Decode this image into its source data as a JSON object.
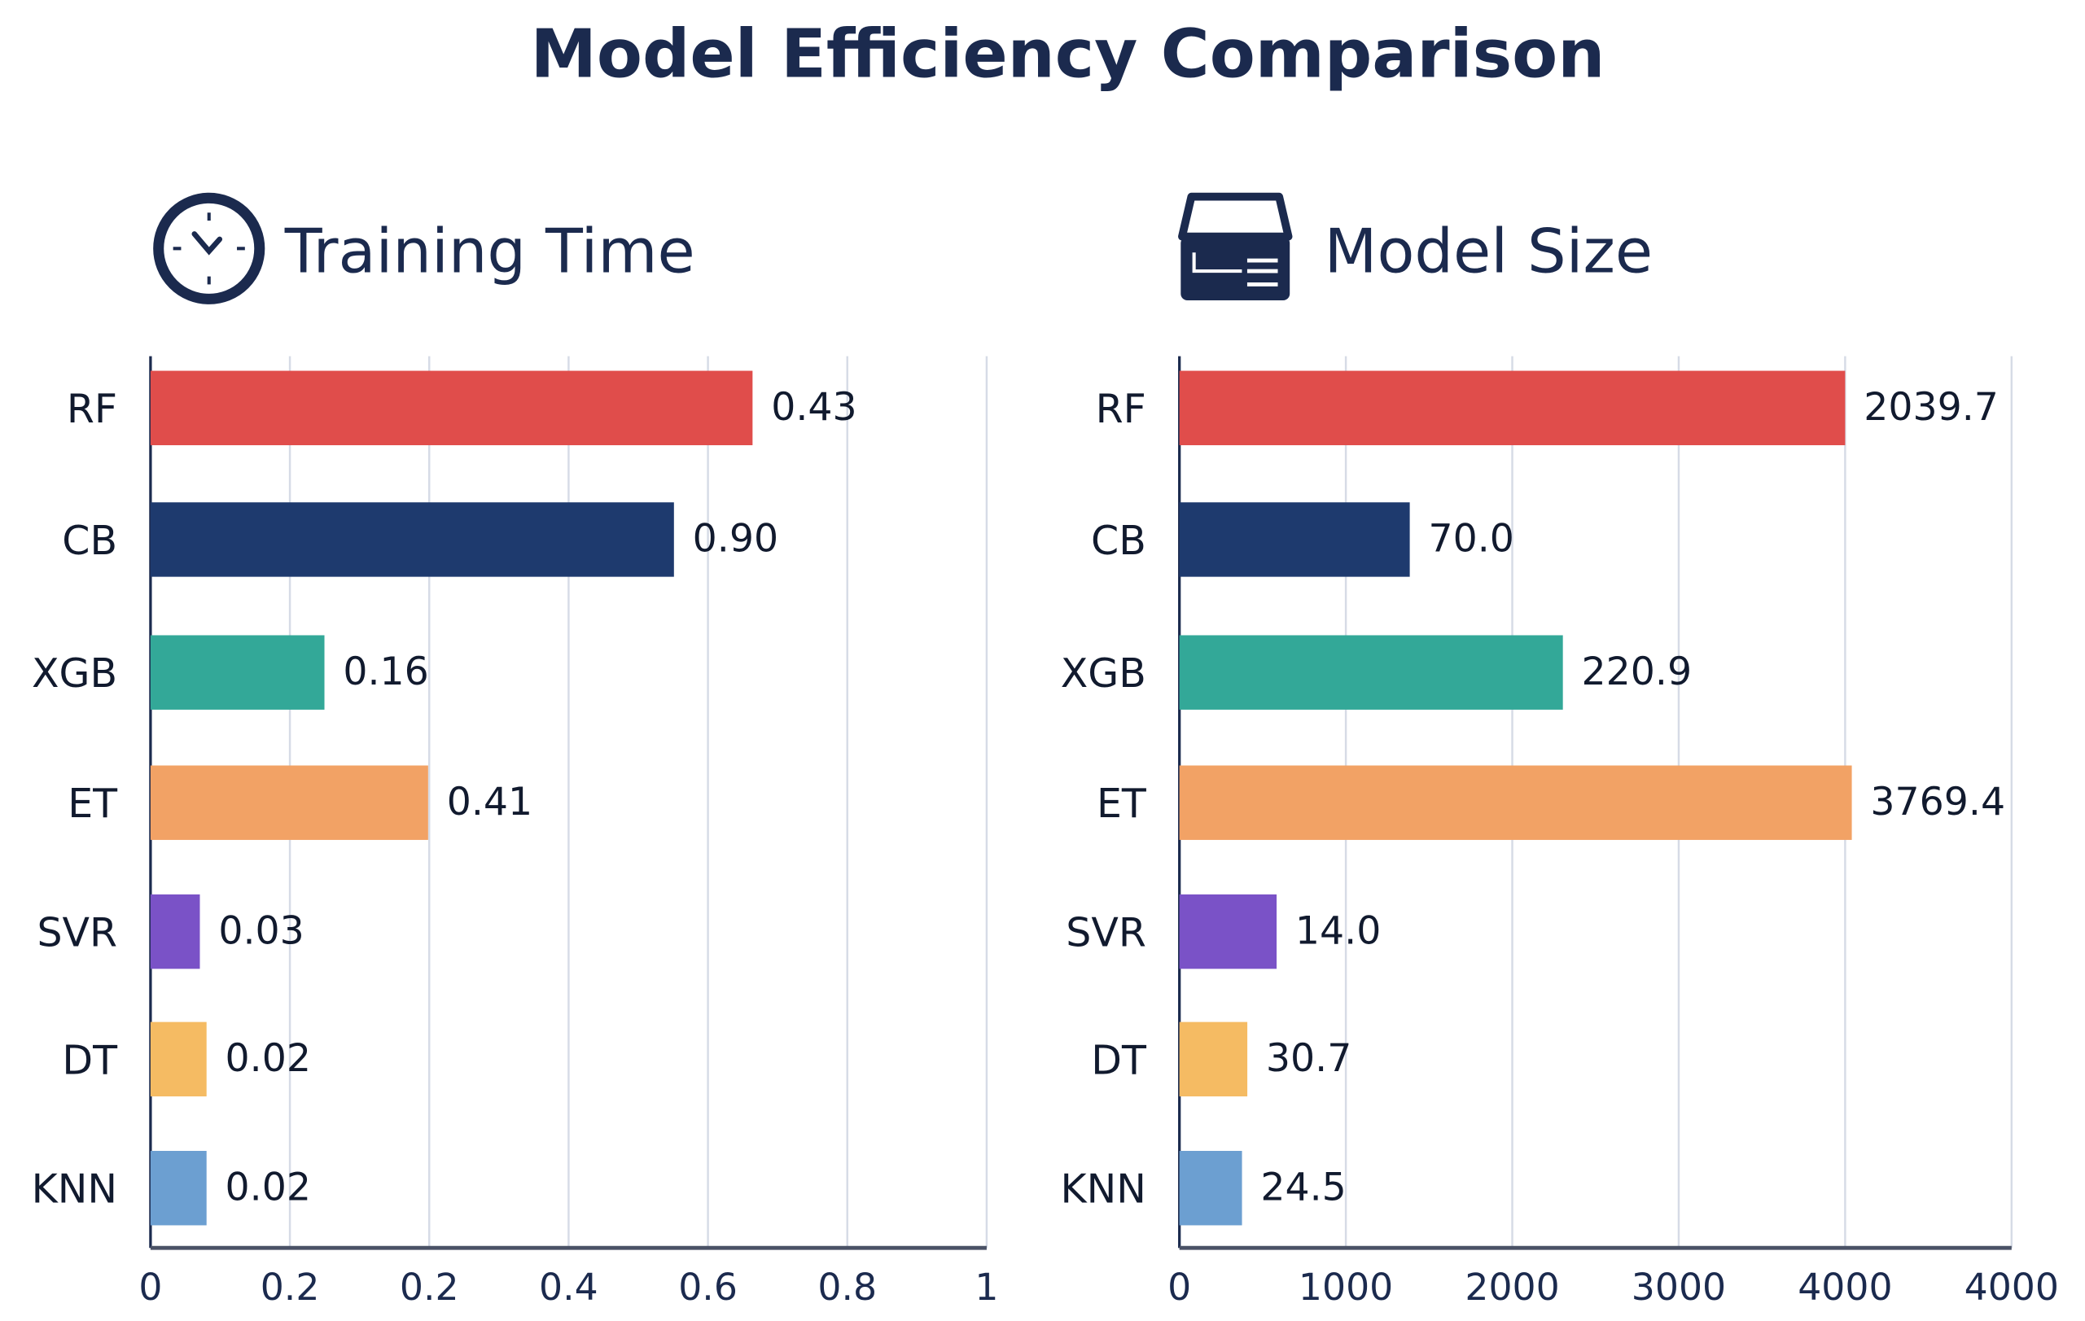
{
  "title": "Model Efficiency Comparison",
  "icons": {
    "left": "clock-icon",
    "right": "storage-drawer-icon"
  },
  "text_color": "#1b2a4e",
  "chart_data": [
    {
      "type": "bar",
      "orientation": "horizontal",
      "title": "Training Time",
      "categories": [
        "RF",
        "CB",
        "XGB",
        "ET",
        "SVR",
        "DT",
        "KNN"
      ],
      "value_labels": [
        "0.43",
        "0.90",
        "0.16",
        "0.41",
        "0.03",
        "0.02",
        "0.02"
      ],
      "values": [
        0.43,
        0.9,
        0.16,
        0.41,
        0.03,
        0.02,
        0.02
      ],
      "bar_extent": [
        0.72,
        0.626,
        0.208,
        0.332,
        0.059,
        0.067,
        0.067
      ],
      "colors": [
        "#e04d4b",
        "#1e3a6e",
        "#33a898",
        "#f2a265",
        "#7a52c7",
        "#f5bb63",
        "#6c9fd1"
      ],
      "tick_labels": [
        "0",
        "0.2",
        "0.2",
        "0.4",
        "0.6",
        "0.8",
        "1"
      ],
      "xlim": [
        0,
        1
      ],
      "grid": true
    },
    {
      "type": "bar",
      "orientation": "horizontal",
      "title": "Model Size",
      "categories": [
        "RF",
        "CB",
        "XGB",
        "ET",
        "SVR",
        "DT",
        "KNN"
      ],
      "value_labels": [
        "2039.7",
        "70.0",
        "220.9",
        "3769.4",
        "14.0",
        "30.7",
        "24.5"
      ],
      "values": [
        2039.7,
        70.0,
        220.9,
        3769.4,
        14.0,
        30.7,
        24.5
      ],
      "bar_extent": [
        4000,
        1384,
        2304,
        4040,
        584,
        408,
        376
      ],
      "colors": [
        "#e04d4b",
        "#1e3a6e",
        "#33a898",
        "#f2a265",
        "#7a52c7",
        "#f5bb63",
        "#6c9fd1"
      ],
      "tick_labels": [
        "0",
        "1000",
        "2000",
        "3000",
        "4000",
        "4000"
      ],
      "xlim": [
        0,
        5000
      ],
      "grid": true
    }
  ]
}
